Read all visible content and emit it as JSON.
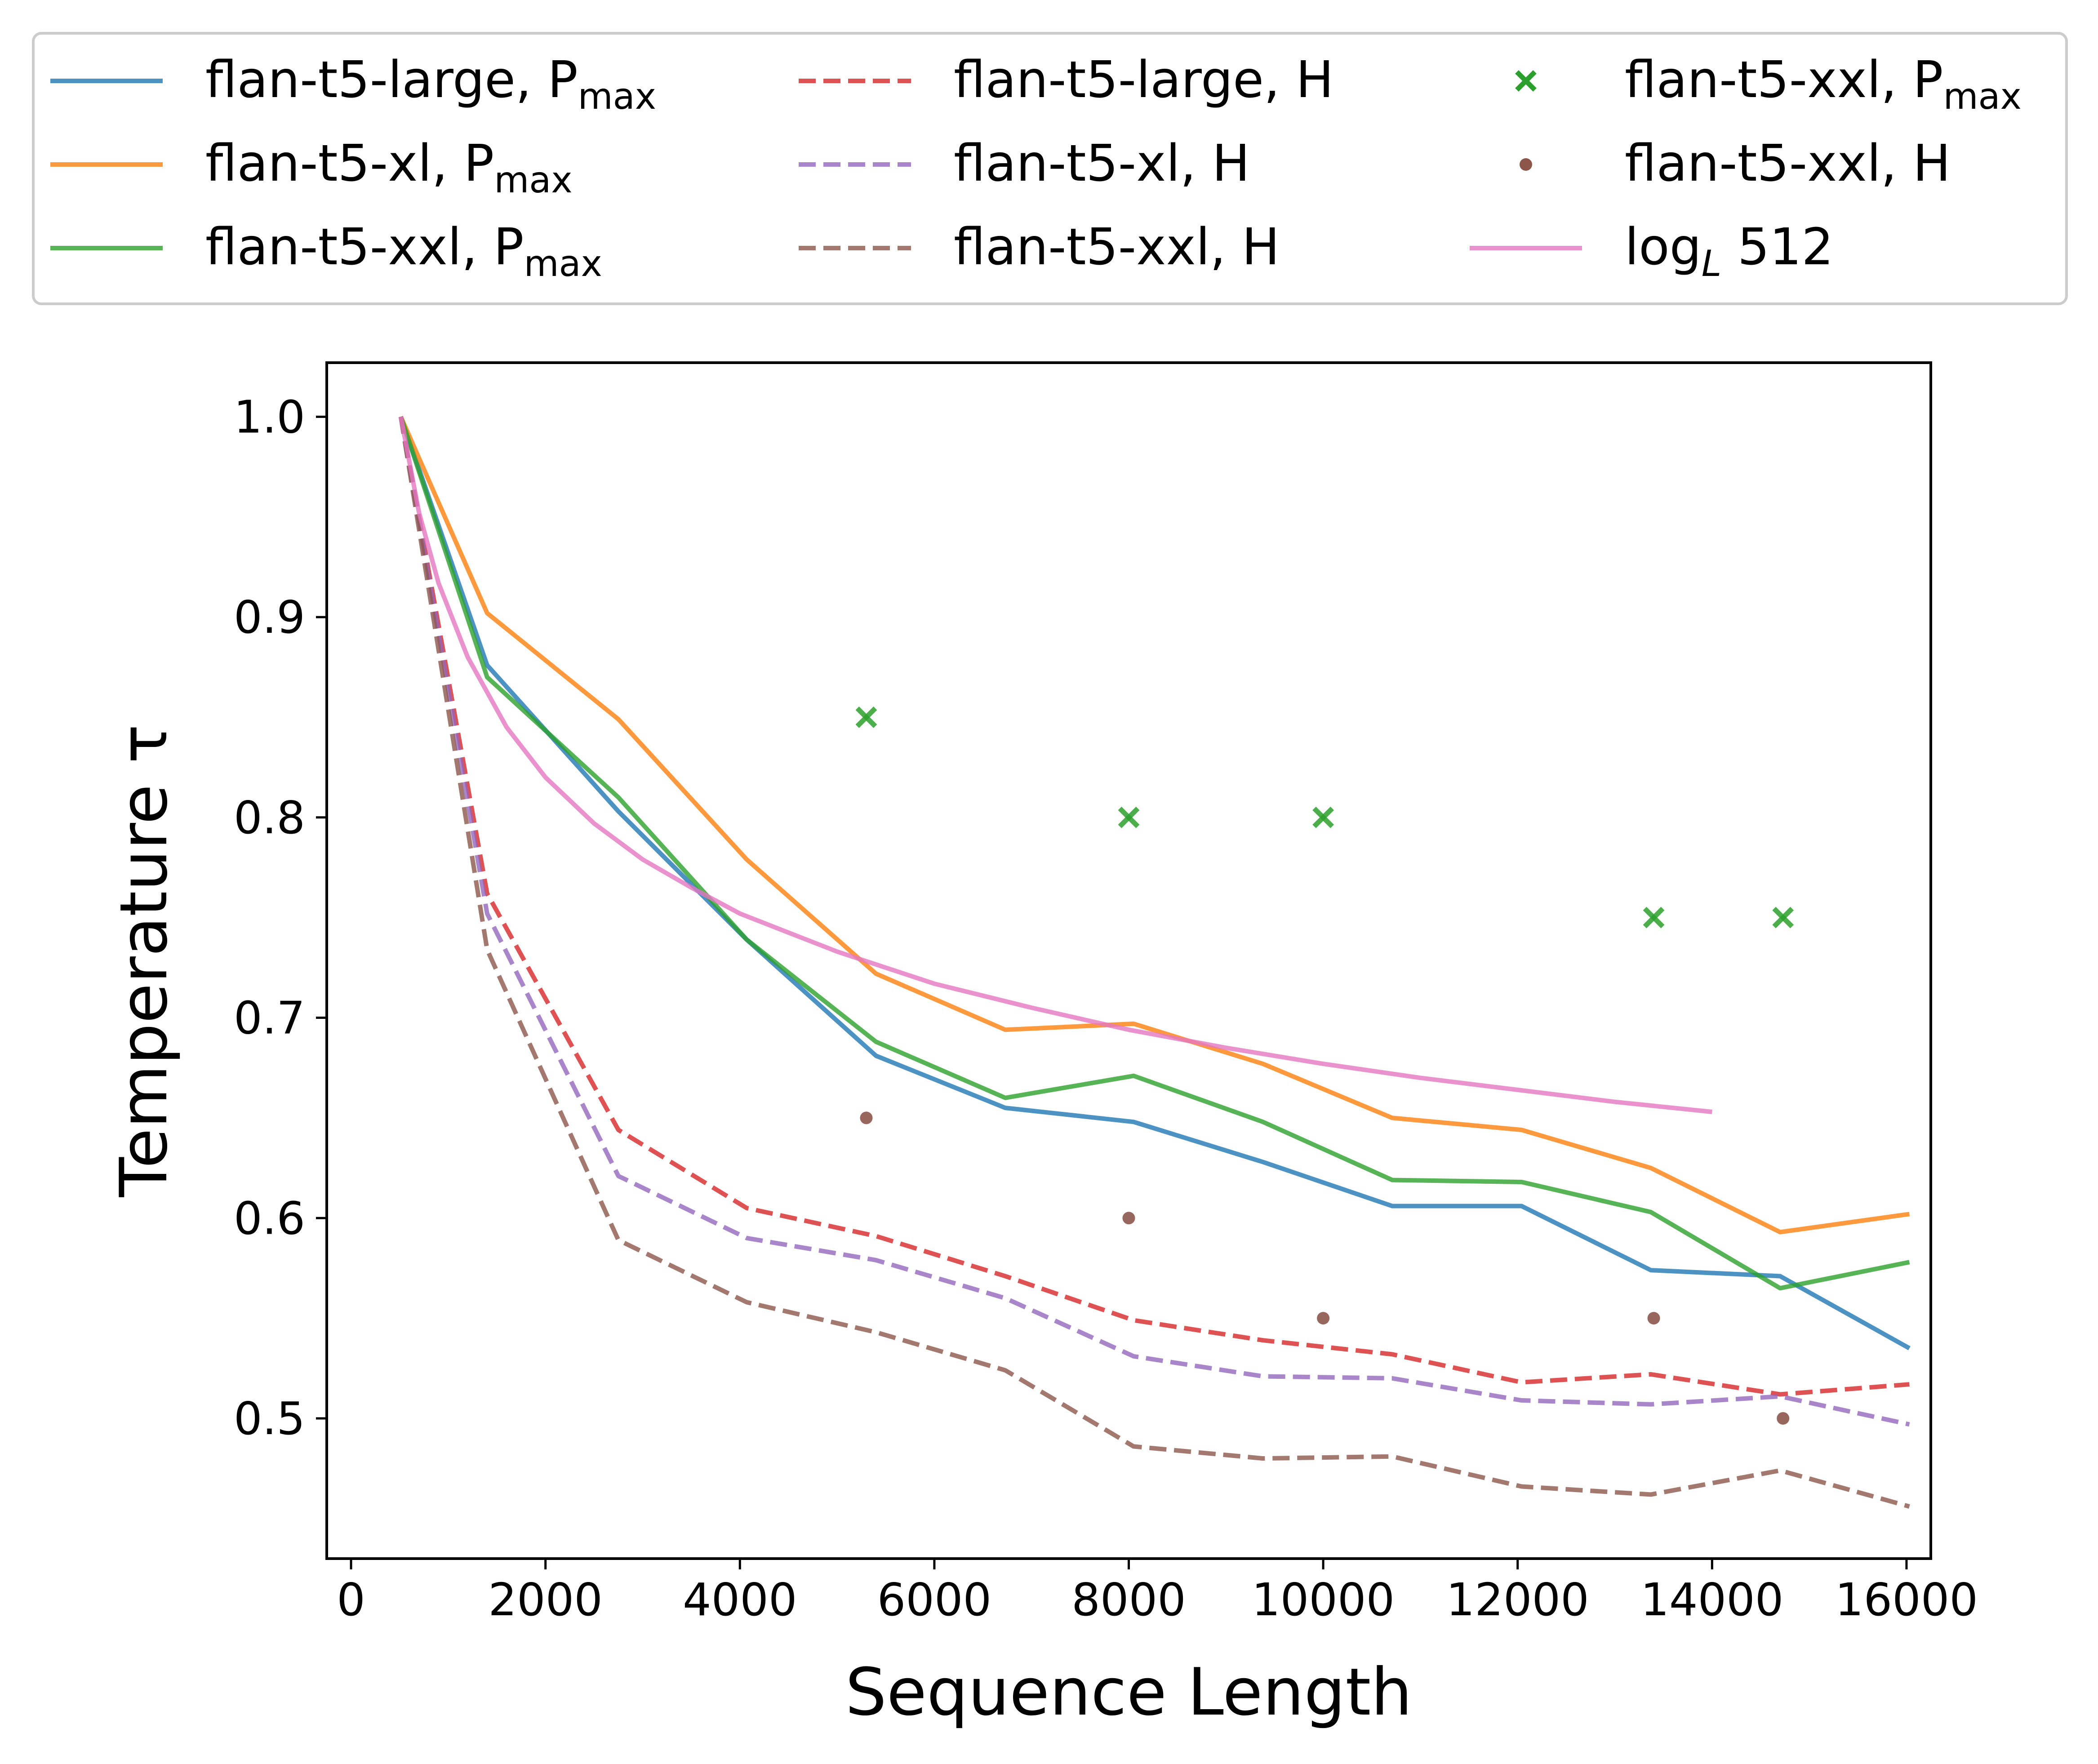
{
  "chart_data": {
    "type": "line",
    "title": "",
    "xlabel": "Sequence Length",
    "ylabel": "Temperature τ",
    "xlim": [
      -250,
      16250
    ],
    "ylim": [
      0.43,
      1.027
    ],
    "xticks": [
      0,
      2000,
      4000,
      6000,
      8000,
      10000,
      12000,
      14000,
      16000
    ],
    "xtick_labels": [
      "0",
      "2000",
      "4000",
      "6000",
      "8000",
      "10000",
      "12000",
      "14000",
      "16000"
    ],
    "yticks": [
      0.5,
      0.6,
      0.7,
      0.8,
      0.9,
      1.0
    ],
    "ytick_labels": [
      "0.5",
      "0.6",
      "0.7",
      "0.8",
      "0.9",
      "1.0"
    ],
    "grid": false,
    "legend_position": "top, above plot, 3 columns",
    "series": [
      {
        "name": "flan-t5-large, P",
        "name_sub": "max",
        "kind": "line",
        "style": "solid",
        "color": "#1f77b4",
        "x": [
          512,
          1400,
          2750,
          4070,
          5400,
          6730,
          8050,
          9380,
          10710,
          12040,
          13370,
          14700,
          16030
        ],
        "y": [
          1.0,
          0.876,
          0.803,
          0.739,
          0.681,
          0.655,
          0.648,
          0.628,
          0.606,
          0.606,
          0.574,
          0.571,
          0.535
        ]
      },
      {
        "name": "flan-t5-xl, P",
        "name_sub": "max",
        "kind": "line",
        "style": "solid",
        "color": "#ff7f0e",
        "x": [
          512,
          1400,
          2750,
          4070,
          5400,
          6730,
          8050,
          9380,
          10710,
          12040,
          13370,
          14700,
          16030
        ],
        "y": [
          1.0,
          0.902,
          0.849,
          0.779,
          0.722,
          0.694,
          0.697,
          0.677,
          0.65,
          0.644,
          0.625,
          0.593,
          0.602
        ]
      },
      {
        "name": "flan-t5-xxl, P",
        "name_sub": "max",
        "kind": "line",
        "style": "solid",
        "color": "#2ca02c",
        "x": [
          512,
          1400,
          2750,
          4070,
          5400,
          6730,
          8050,
          9380,
          10710,
          12040,
          13370,
          14700,
          16030
        ],
        "y": [
          1.0,
          0.87,
          0.81,
          0.739,
          0.688,
          0.66,
          0.671,
          0.648,
          0.619,
          0.618,
          0.603,
          0.565,
          0.578
        ]
      },
      {
        "name": "flan-t5-large, H",
        "kind": "line",
        "style": "dashed",
        "color": "#d62728",
        "x": [
          512,
          1400,
          2750,
          4070,
          5400,
          6730,
          8050,
          9380,
          10710,
          12040,
          13370,
          14700,
          16030
        ],
        "y": [
          1.0,
          0.762,
          0.644,
          0.605,
          0.591,
          0.571,
          0.549,
          0.539,
          0.532,
          0.518,
          0.522,
          0.512,
          0.517
        ]
      },
      {
        "name": "flan-t5-xl, H",
        "kind": "line",
        "style": "dashed",
        "color": "#9467bd",
        "x": [
          512,
          1400,
          2750,
          4070,
          5400,
          6730,
          8050,
          9380,
          10710,
          12040,
          13370,
          14700,
          16030
        ],
        "y": [
          1.0,
          0.752,
          0.621,
          0.59,
          0.579,
          0.56,
          0.531,
          0.521,
          0.52,
          0.509,
          0.507,
          0.511,
          0.497
        ]
      },
      {
        "name": "flan-t5-xxl, H",
        "kind": "line",
        "style": "dashed",
        "color": "#8c564b",
        "x": [
          512,
          1400,
          2750,
          4070,
          5400,
          6730,
          8050,
          9380,
          10710,
          12040,
          13370,
          14700,
          16030
        ],
        "y": [
          1.0,
          0.734,
          0.589,
          0.558,
          0.543,
          0.524,
          0.486,
          0.48,
          0.481,
          0.466,
          0.462,
          0.474,
          0.456
        ]
      },
      {
        "name": "flan-t5-xxl, P",
        "name_sub": "max",
        "kind": "scatter",
        "marker": "x",
        "color": "#2ca02c",
        "x": [
          5300,
          8000,
          10000,
          13400,
          14730
        ],
        "y": [
          0.85,
          0.8,
          0.8,
          0.75,
          0.75
        ]
      },
      {
        "name": "flan-t5-xxl, H",
        "kind": "scatter",
        "marker": "dot",
        "color": "#8c564b",
        "x": [
          5300,
          8000,
          10000,
          13400,
          14730
        ],
        "y": [
          0.65,
          0.6,
          0.55,
          0.55,
          0.5
        ]
      },
      {
        "name": "log",
        "name_sub": "L",
        "name_tail": " 512",
        "kind": "line",
        "style": "solid",
        "color": "#e377c2",
        "x": [
          512,
          700,
          900,
          1200,
          1600,
          2000,
          2500,
          3000,
          3500,
          4000,
          5000,
          6000,
          7000,
          8000,
          9000,
          10000,
          11000,
          12000,
          13000,
          14000
        ],
        "y": [
          1.0,
          0.952,
          0.917,
          0.88,
          0.845,
          0.82,
          0.797,
          0.779,
          0.765,
          0.752,
          0.733,
          0.717,
          0.705,
          0.694,
          0.685,
          0.677,
          0.67,
          0.664,
          0.658,
          0.653
        ]
      }
    ]
  }
}
